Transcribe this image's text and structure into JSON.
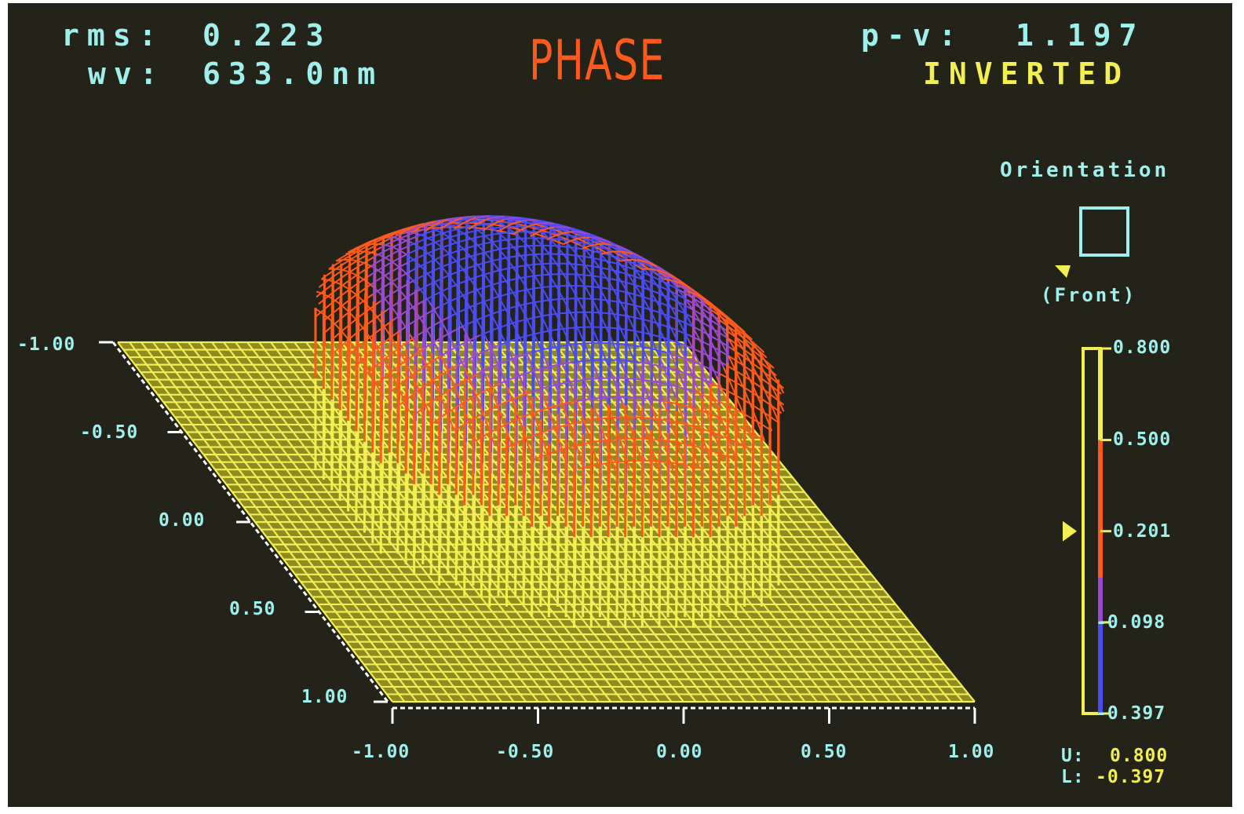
{
  "header": {
    "rms_label": "rms:",
    "rms_value": "0.223",
    "wv_label": "wv:",
    "wv_value": "633.0nm",
    "title": "PHASE",
    "pv_label": "p-v:",
    "pv_value": "1.197",
    "mode": "INVERTED"
  },
  "orientation": {
    "label": "Orientation",
    "view": "(Front)"
  },
  "colorbar": {
    "ticks": [
      "0.800",
      "0.500",
      "0.201",
      "-0.098",
      "-0.397"
    ],
    "tick_values": [
      0.8,
      0.5,
      0.201,
      -0.098,
      -0.397
    ],
    "marker_value": 0.201,
    "upper_label": "U:",
    "upper_value": "0.800",
    "lower_label": "L:",
    "lower_value": "-0.397",
    "colors": [
      "#f3ee52",
      "#ff5a1c",
      "#9a4ad0",
      "#4a4cf4"
    ]
  },
  "chart_data": {
    "type": "surface",
    "title": "PHASE",
    "x_ticks": [
      "-1.00",
      "-0.50",
      "0.00",
      "0.50",
      "1.00"
    ],
    "y_ticks": [
      "-1.00",
      "-0.50",
      "0.00",
      "0.50",
      "1.00"
    ],
    "xlim": [
      -1,
      1
    ],
    "ylim": [
      -1,
      1
    ],
    "zlim": [
      -0.397,
      0.8
    ],
    "rms": 0.223,
    "peak_to_valley": 1.197,
    "wavelength_nm": 633.0,
    "colors": {
      "background": "#23231a",
      "text": "#9ff0ec",
      "base": "#f3ee52",
      "mid": "#ff5a1c",
      "high": "#4a4cf4"
    }
  }
}
